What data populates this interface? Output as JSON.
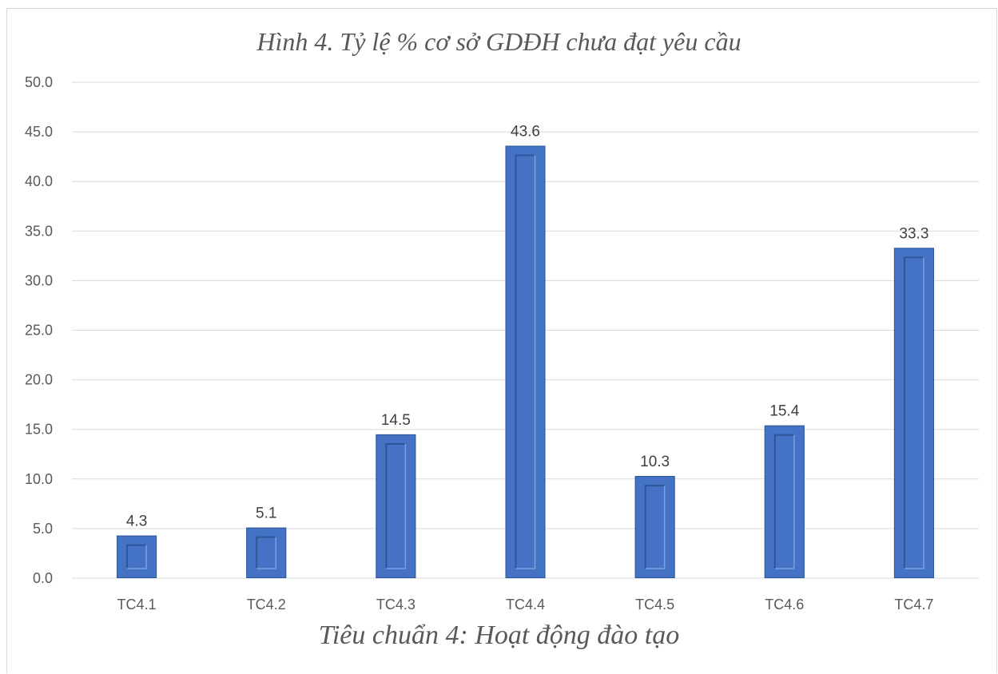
{
  "chart_data": {
    "type": "bar",
    "title": "Hình 4. Tỷ lệ % cơ sở GDĐH chưa đạt yêu cầu",
    "xlabel": "Tiêu chuẩn 4: Hoạt động đào tạo",
    "ylabel": "",
    "categories": [
      "TC4.1",
      "TC4.2",
      "TC4.3",
      "TC4.4",
      "TC4.5",
      "TC4.6",
      "TC4.7"
    ],
    "values": [
      4.3,
      5.1,
      14.5,
      43.6,
      10.3,
      15.4,
      33.3
    ],
    "data_labels": [
      "4.3",
      "5.1",
      "14.5",
      "43.6",
      "10.3",
      "15.4",
      "33.3"
    ],
    "ylim": [
      0,
      50
    ],
    "yticks": [
      "0.0",
      "5.0",
      "10.0",
      "15.0",
      "20.0",
      "25.0",
      "30.0",
      "35.0",
      "40.0",
      "45.0",
      "50.0"
    ],
    "grid": true,
    "legend": "none",
    "colors": {
      "bar": "#4472c4",
      "bar_dark": "#2f5597",
      "bar_light": "#7da0de",
      "grid": "#d9d9d9",
      "text": "#595959"
    }
  }
}
